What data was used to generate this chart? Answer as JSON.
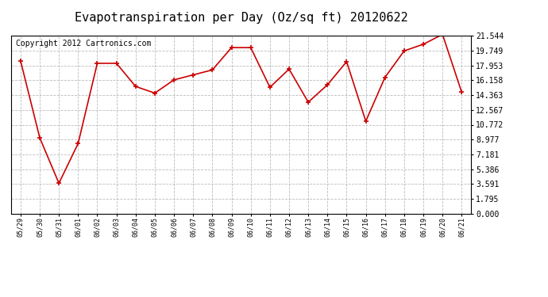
{
  "title": "Evapotranspiration per Day (Oz/sq ft) 20120622",
  "copyright": "Copyright 2012 Cartronics.com",
  "x_labels": [
    "05/29",
    "05/30",
    "05/31",
    "06/01",
    "06/02",
    "06/03",
    "06/04",
    "06/05",
    "06/06",
    "06/07",
    "06/08",
    "06/09",
    "06/10",
    "06/11",
    "06/12",
    "06/13",
    "06/14",
    "06/15",
    "06/16",
    "06/17",
    "06/18",
    "06/19",
    "06/20",
    "06/21"
  ],
  "y_values": [
    18.5,
    9.2,
    3.7,
    8.5,
    18.2,
    18.2,
    15.4,
    14.6,
    16.2,
    16.8,
    17.4,
    20.1,
    20.1,
    15.3,
    17.5,
    13.5,
    15.6,
    18.4,
    11.2,
    16.5,
    19.7,
    20.5,
    21.7,
    14.7
  ],
  "line_color": "#cc0000",
  "marker_color": "#cc0000",
  "bg_color": "#ffffff",
  "grid_color": "#bbbbbb",
  "y_ticks": [
    0.0,
    1.795,
    3.591,
    5.386,
    7.181,
    8.977,
    10.772,
    12.567,
    14.363,
    16.158,
    17.953,
    19.749,
    21.544
  ],
  "ylim": [
    0.0,
    21.544
  ],
  "title_fontsize": 11,
  "copyright_fontsize": 7,
  "tick_fontsize": 7,
  "xtick_fontsize": 6
}
